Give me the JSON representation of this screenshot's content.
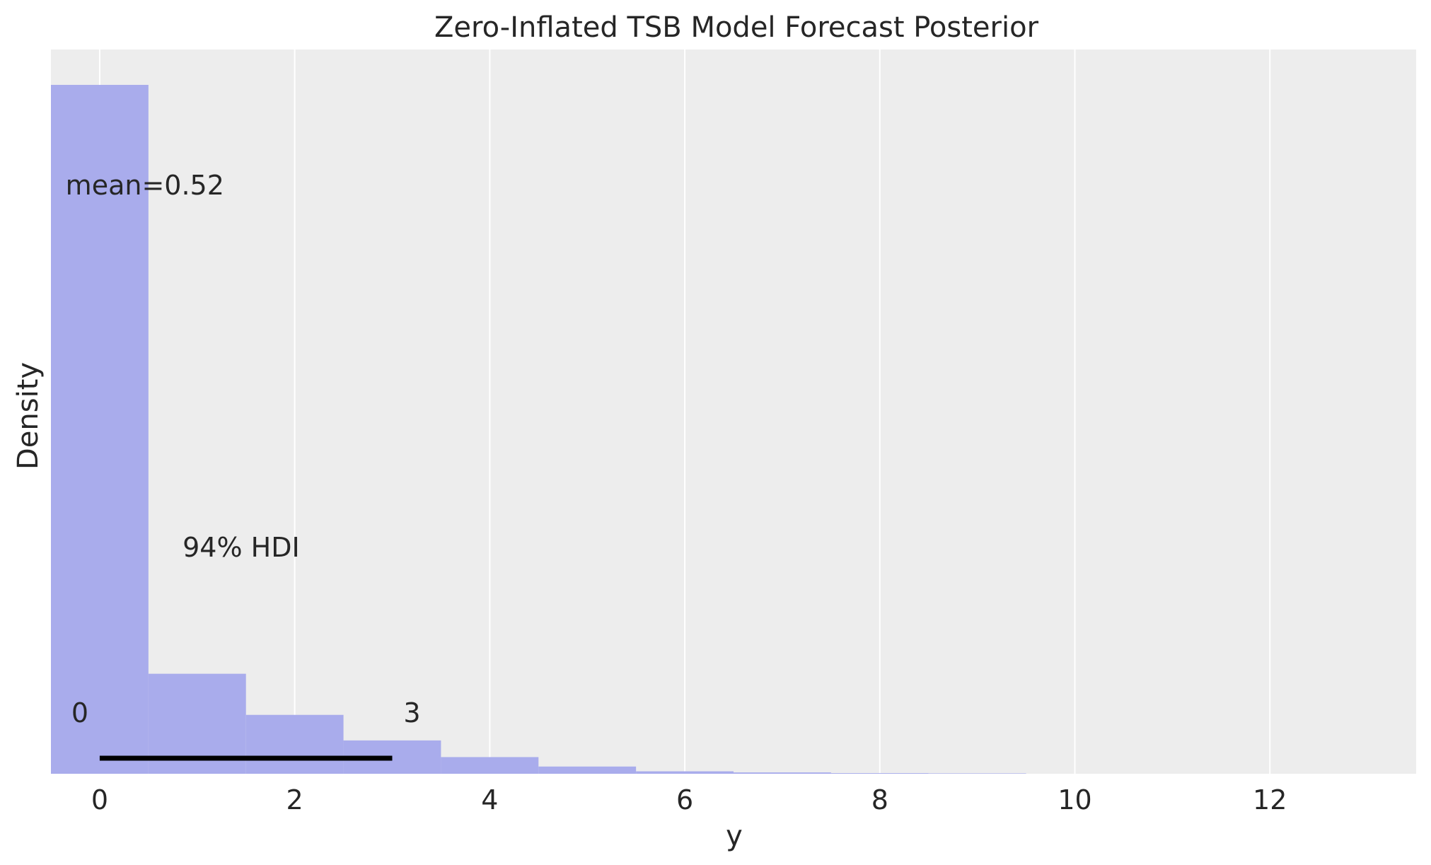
{
  "chart_data": {
    "type": "bar",
    "title": "Zero-Inflated TSB Model Forecast Posterior",
    "xlabel": "y",
    "ylabel": "Density",
    "xlim": [
      -0.5,
      13.5
    ],
    "ylim": [
      0,
      0.62
    ],
    "x_ticks": [
      0,
      2,
      4,
      6,
      8,
      10,
      12
    ],
    "grid": "vertical",
    "bins": [
      {
        "start": -0.5,
        "end": 0.5,
        "value": 0.62
      },
      {
        "start": 0.5,
        "end": 1.5,
        "value": 0.09
      },
      {
        "start": 1.5,
        "end": 2.5,
        "value": 0.053
      },
      {
        "start": 2.5,
        "end": 3.5,
        "value": 0.03
      },
      {
        "start": 3.5,
        "end": 4.5,
        "value": 0.015
      },
      {
        "start": 4.5,
        "end": 5.5,
        "value": 0.0065
      },
      {
        "start": 5.5,
        "end": 6.5,
        "value": 0.0022
      },
      {
        "start": 6.5,
        "end": 7.5,
        "value": 0.0012
      },
      {
        "start": 7.5,
        "end": 8.5,
        "value": 0.0006
      },
      {
        "start": 8.5,
        "end": 9.5,
        "value": 0.0004
      }
    ],
    "annotations": {
      "mean_label": "mean=0.52",
      "hdi_label": "94% HDI",
      "hdi_low": 0,
      "hdi_high": 3,
      "hdi_low_label": "0",
      "hdi_high_label": "3"
    },
    "colors": {
      "bars": "#a9acec",
      "background": "#ededed",
      "grid": "#ffffff",
      "hdi_line": "#000000"
    }
  }
}
